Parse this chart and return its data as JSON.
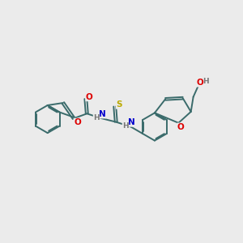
{
  "bg_color": "#ebebeb",
  "bond_color": "#3a6b6b",
  "bond_width": 1.4,
  "atom_colors": {
    "O": "#dd0000",
    "N": "#0000cc",
    "S": "#bbaa00",
    "H": "#777777",
    "C": "#3a6b6b"
  },
  "font_size_atom": 7.5,
  "font_size_h": 6.5,
  "dbo": 0.055
}
